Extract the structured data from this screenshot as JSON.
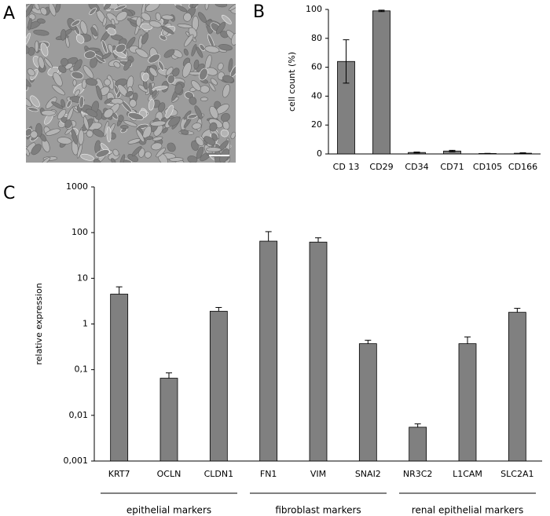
{
  "chart_data": [
    {
      "type": "image",
      "label": "A"
    },
    {
      "type": "bar",
      "label": "B",
      "ylabel": "cell count (%)",
      "categories": [
        "CD 13",
        "CD29",
        "CD34",
        "CD71",
        "CD105",
        "CD166"
      ],
      "values": [
        64,
        99,
        1,
        2,
        0.3,
        0.5
      ],
      "errors": [
        15,
        0.5,
        0.3,
        0.5,
        0.1,
        0.3
      ],
      "error_bars": "both",
      "color": "#808080",
      "ylim": [
        0,
        100
      ],
      "yticks": [
        0,
        20,
        40,
        60,
        80,
        100
      ]
    },
    {
      "type": "bar",
      "label": "C",
      "ylabel": "relative expression",
      "log_scale": true,
      "categories": [
        "KRT7",
        "OCLN",
        "CLDN1",
        "FN1",
        "VIM",
        "SNAI2",
        "NR3C2",
        "L1CAM",
        "SLC2A1"
      ],
      "values": [
        4.5,
        0.065,
        1.9,
        65,
        62,
        0.37,
        0.0055,
        0.37,
        1.8
      ],
      "errors": [
        2,
        0.02,
        0.4,
        40,
        15,
        0.07,
        0.001,
        0.15,
        0.4
      ],
      "error_bars": "upper",
      "color": "#808080",
      "groups": [
        "epithelial markers",
        "fibroblast markers",
        "renal epithelial markers"
      ],
      "ylim": [
        0.001,
        1000
      ],
      "yticks": [
        {
          "value": 0.001,
          "label": "0,001"
        },
        {
          "value": 0.01,
          "label": "0,01"
        },
        {
          "value": 0.1,
          "label": "0,1"
        },
        1,
        10,
        100,
        1000
      ]
    }
  ]
}
